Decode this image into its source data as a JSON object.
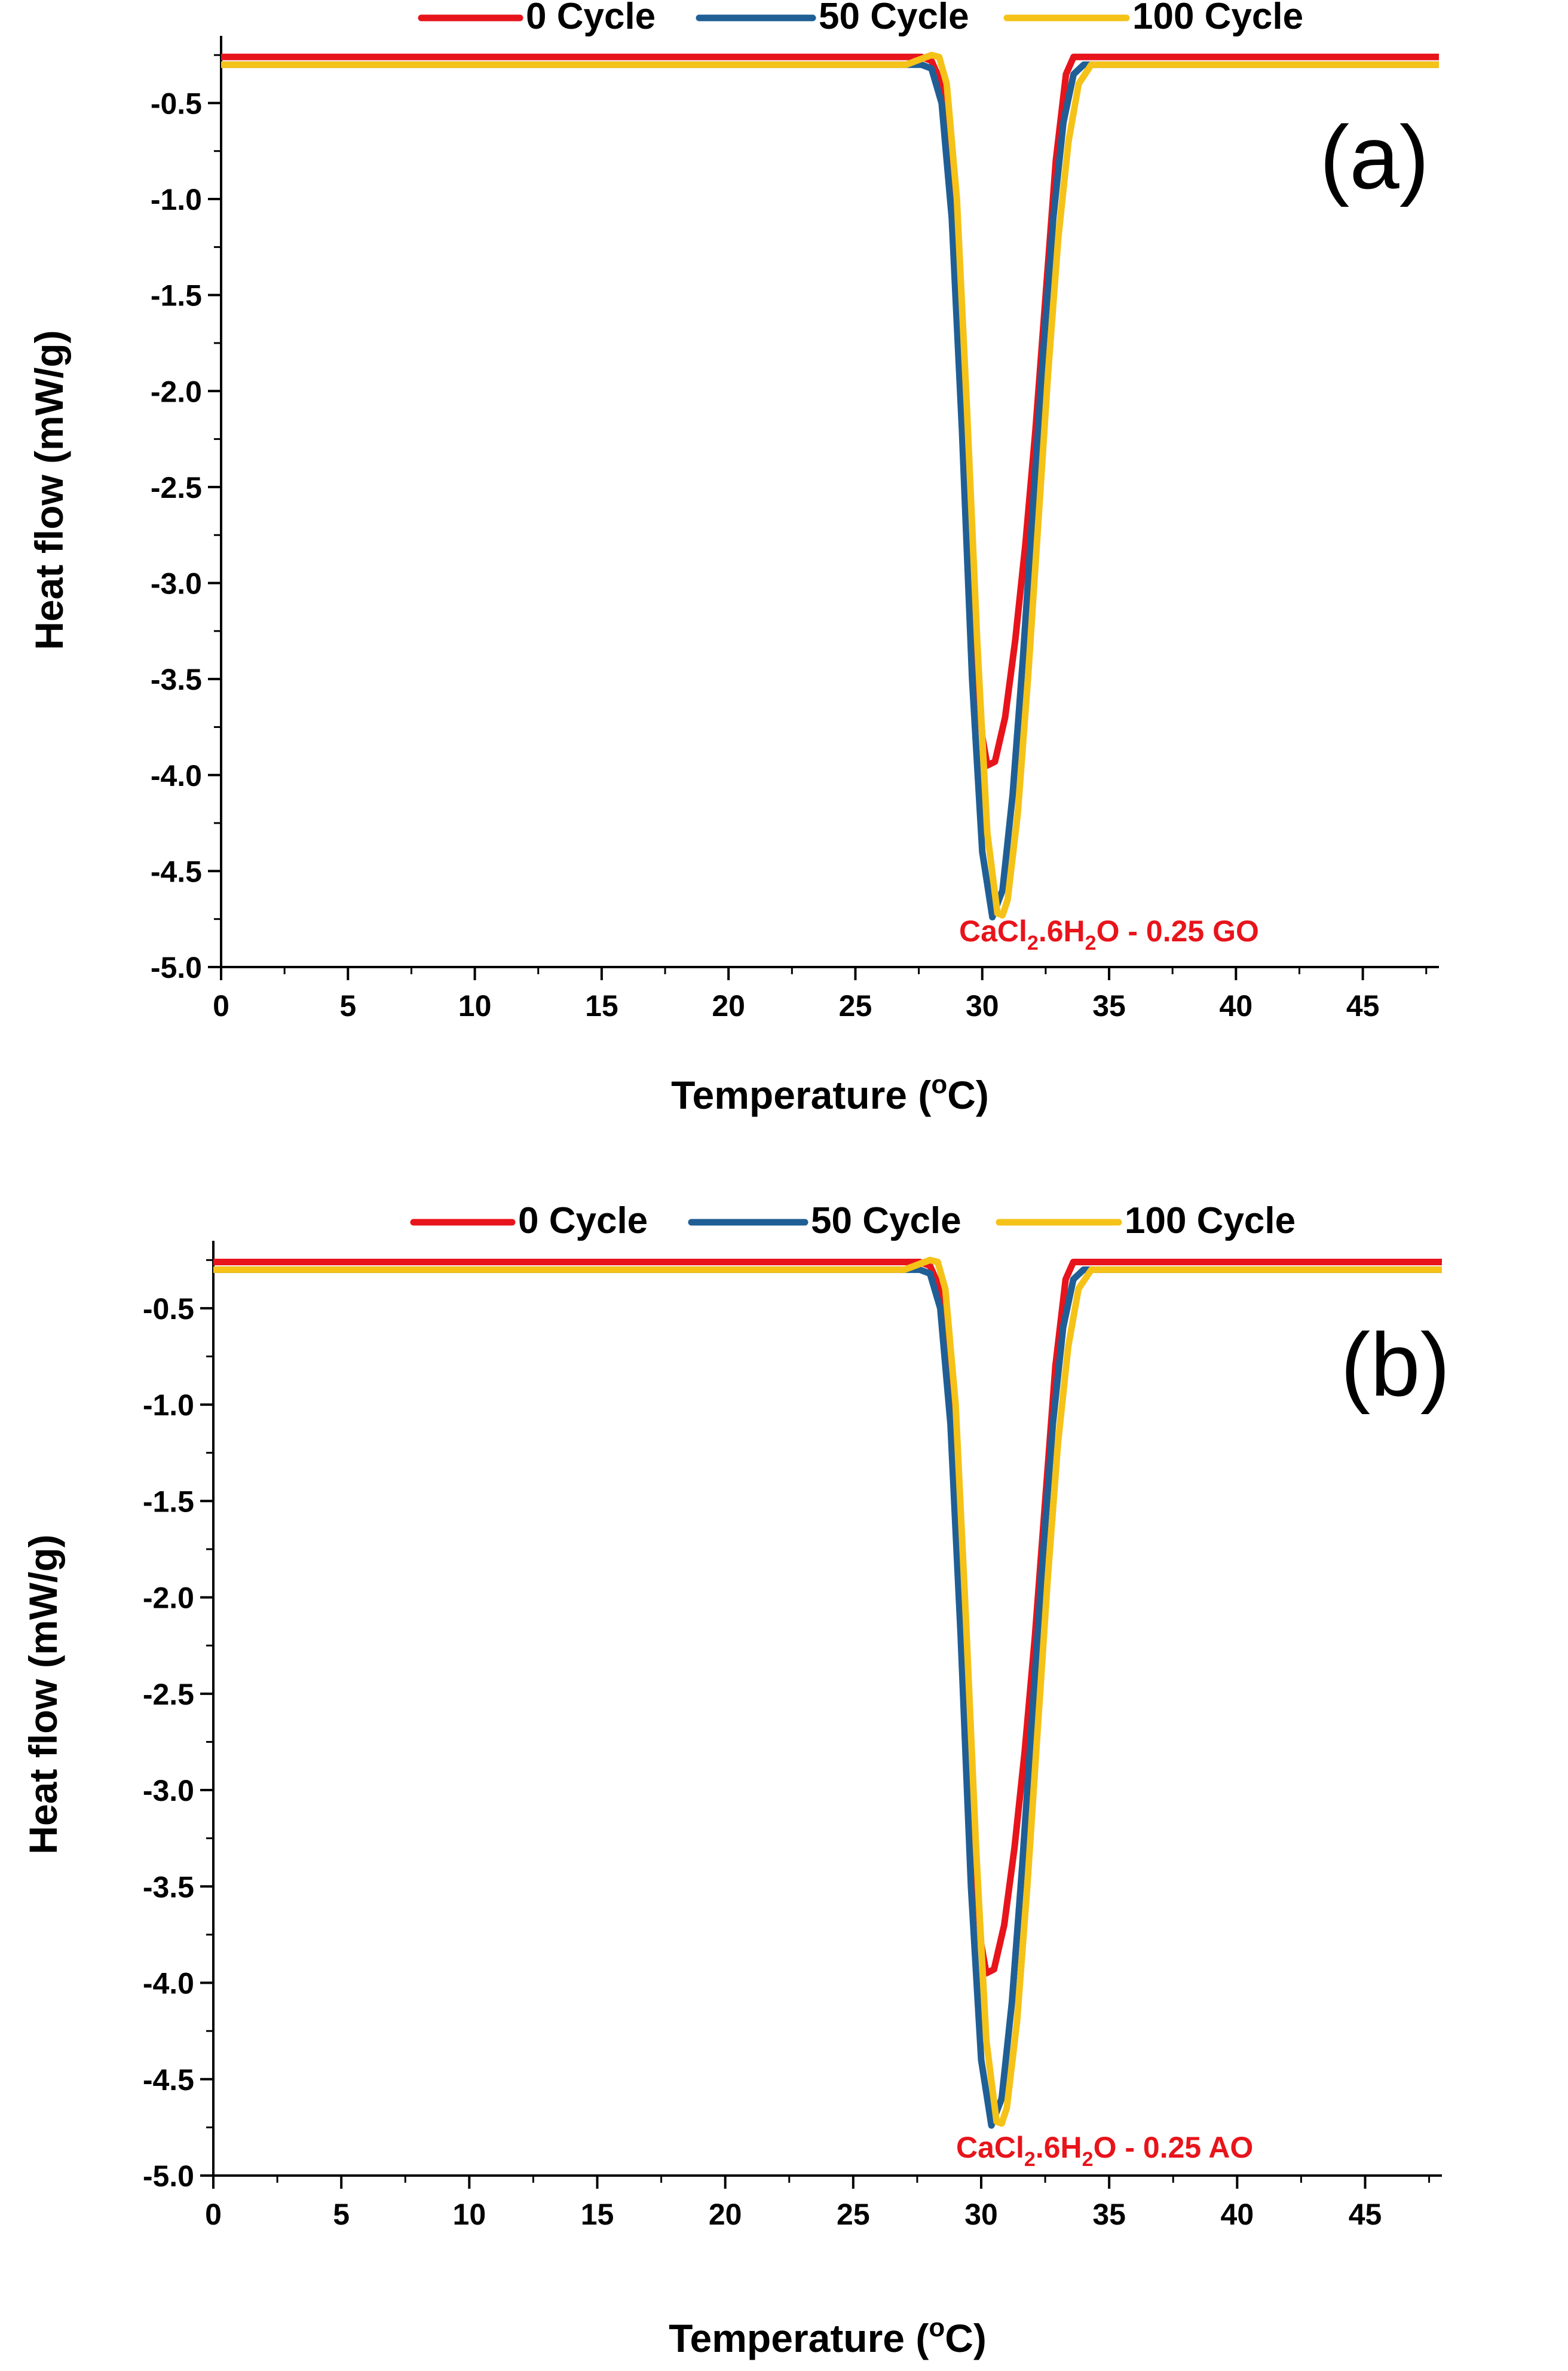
{
  "chart_data": [
    {
      "type": "line",
      "panel_label": "(a)",
      "xlabel": "Temperature (",
      "xlabel_sup": "o",
      "xlabel_end": "C)",
      "ylabel": "Heat flow (mW/g)",
      "xlim": [
        0,
        48
      ],
      "ylim": [
        -5.0,
        -0.15
      ],
      "xticks": [
        0,
        5,
        10,
        15,
        20,
        25,
        30,
        35,
        40,
        45
      ],
      "yticks": [
        -5.0,
        -4.5,
        -4.0,
        -3.5,
        -3.0,
        -2.5,
        -2.0,
        -1.5,
        -1.0,
        -0.5
      ],
      "annotation": {
        "parts": [
          "CaCl",
          "2",
          ".6H",
          "2",
          "O - 0.25 GO"
        ]
      },
      "legend_position": "top",
      "series": [
        {
          "name": "0 Cycle",
          "color": "#e8141b",
          "x": [
            0,
            27.6,
            28.0,
            28.4,
            28.8,
            29.2,
            29.6,
            30.0,
            30.2,
            30.5,
            30.9,
            31.3,
            31.7,
            32.1,
            32.5,
            32.9,
            33.3,
            33.6,
            48
          ],
          "y": [
            -0.26,
            -0.26,
            -0.28,
            -0.4,
            -0.9,
            -1.9,
            -3.0,
            -3.8,
            -3.95,
            -3.93,
            -3.7,
            -3.3,
            -2.8,
            -2.2,
            -1.5,
            -0.8,
            -0.35,
            -0.26,
            -0.26
          ]
        },
        {
          "name": "50 Cycle",
          "color": "#1f5f96",
          "x": [
            0,
            27.6,
            28.0,
            28.4,
            28.8,
            29.2,
            29.6,
            30.0,
            30.4,
            30.8,
            31.2,
            31.6,
            32.0,
            32.4,
            32.8,
            33.2,
            33.6,
            34.0,
            48
          ],
          "y": [
            -0.3,
            -0.3,
            -0.32,
            -0.5,
            -1.1,
            -2.2,
            -3.5,
            -4.4,
            -4.74,
            -4.6,
            -4.1,
            -3.4,
            -2.6,
            -1.8,
            -1.1,
            -0.6,
            -0.35,
            -0.3,
            -0.3
          ]
        },
        {
          "name": "100 Cycle",
          "color": "#f5c218",
          "x": [
            0,
            27.0,
            27.6,
            28.0,
            28.3,
            28.6,
            29.0,
            29.4,
            29.8,
            30.2,
            30.6,
            30.8,
            31.0,
            31.4,
            31.8,
            32.2,
            32.6,
            33.0,
            33.4,
            33.8,
            34.3,
            48
          ],
          "y": [
            -0.3,
            -0.3,
            -0.27,
            -0.25,
            -0.26,
            -0.4,
            -1.0,
            -2.1,
            -3.3,
            -4.3,
            -4.72,
            -4.73,
            -4.65,
            -4.2,
            -3.5,
            -2.7,
            -1.9,
            -1.2,
            -0.7,
            -0.4,
            -0.3,
            -0.3
          ]
        }
      ]
    },
    {
      "type": "line",
      "panel_label": "(b)",
      "xlabel": "Temperature (",
      "xlabel_sup": "o",
      "xlabel_end": "C)",
      "ylabel": "Heat flow (mW/g)",
      "xlim": [
        0,
        48
      ],
      "ylim": [
        -5.0,
        -0.15
      ],
      "xticks": [
        0,
        5,
        10,
        15,
        20,
        25,
        30,
        35,
        40,
        45
      ],
      "yticks": [
        -5.0,
        -4.5,
        -4.0,
        -3.5,
        -3.0,
        -2.5,
        -2.0,
        -1.5,
        -1.0,
        -0.5
      ],
      "annotation": {
        "parts": [
          "CaCl",
          "2",
          ".6H",
          "2",
          "O - 0.25 AO"
        ]
      },
      "legend_position": "top",
      "series": [
        {
          "name": "0 Cycle",
          "color": "#e8141b",
          "x": [
            0,
            27.6,
            28.0,
            28.4,
            28.8,
            29.2,
            29.6,
            30.0,
            30.2,
            30.5,
            30.9,
            31.3,
            31.7,
            32.1,
            32.5,
            32.9,
            33.3,
            33.6,
            48
          ],
          "y": [
            -0.26,
            -0.26,
            -0.28,
            -0.4,
            -0.9,
            -1.9,
            -3.0,
            -3.8,
            -3.95,
            -3.93,
            -3.7,
            -3.3,
            -2.8,
            -2.2,
            -1.5,
            -0.8,
            -0.35,
            -0.26,
            -0.26
          ]
        },
        {
          "name": "50 Cycle",
          "color": "#1f5f96",
          "x": [
            0,
            27.6,
            28.0,
            28.4,
            28.8,
            29.2,
            29.6,
            30.0,
            30.4,
            30.8,
            31.2,
            31.6,
            32.0,
            32.4,
            32.8,
            33.2,
            33.6,
            34.0,
            48
          ],
          "y": [
            -0.3,
            -0.3,
            -0.32,
            -0.5,
            -1.1,
            -2.2,
            -3.5,
            -4.4,
            -4.74,
            -4.6,
            -4.1,
            -3.4,
            -2.6,
            -1.8,
            -1.1,
            -0.6,
            -0.35,
            -0.3,
            -0.3
          ]
        },
        {
          "name": "100 Cycle",
          "color": "#f5c218",
          "x": [
            0,
            27.0,
            27.6,
            28.0,
            28.3,
            28.6,
            29.0,
            29.4,
            29.8,
            30.2,
            30.6,
            30.8,
            31.0,
            31.4,
            31.8,
            32.2,
            32.6,
            33.0,
            33.4,
            33.8,
            34.3,
            48
          ],
          "y": [
            -0.3,
            -0.3,
            -0.27,
            -0.25,
            -0.26,
            -0.4,
            -1.0,
            -2.1,
            -3.3,
            -4.3,
            -4.72,
            -4.73,
            -4.65,
            -4.2,
            -3.5,
            -2.7,
            -1.9,
            -1.2,
            -0.7,
            -0.4,
            -0.3,
            -0.3
          ]
        }
      ]
    }
  ]
}
